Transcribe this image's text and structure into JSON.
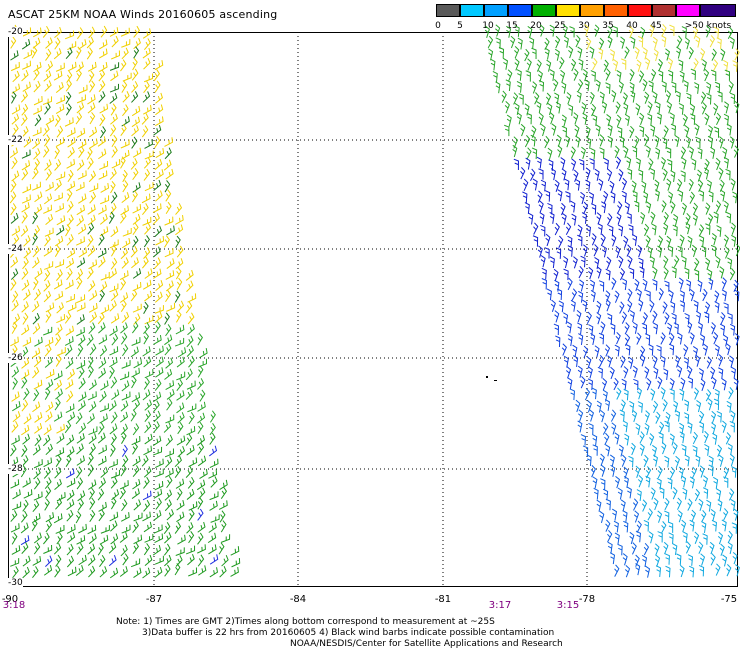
{
  "title": "ASCAT 25KM NOAA Winds 20160605 ascending",
  "legend": {
    "labels": [
      "0",
      "5",
      "10",
      "15",
      "20",
      "25",
      "30",
      "35",
      "40",
      "45",
      ">50 knots"
    ],
    "colors": [
      "#5a5a5a",
      "#a0a0a0",
      "#00c8ff",
      "#0064ff",
      "#00a000",
      "#ffe000",
      "#ff9000",
      "#ff4000",
      "#ff0000",
      "#b43c3c",
      "#ff00ff",
      "#8000c0",
      "#200080"
    ]
  },
  "lat_labels": [
    "-20",
    "-22",
    "-24",
    "-26",
    "-28",
    "-30"
  ],
  "lon_labels": [
    "-90",
    "-87",
    "-84",
    "-81",
    "-78",
    "-75"
  ],
  "time_labels": [
    "3:18",
    "3:17",
    "3:15"
  ],
  "notes": [
    "Note: 1) Times are GMT 2)Times along bottom correspond to measurement at ~25S",
    "3)Data buffer is 22 hrs from 20160605 4) Black wind barbs indicate possible contamination",
    "NOAA/NESDIS/Center for Satellite Applications and Research"
  ]
}
